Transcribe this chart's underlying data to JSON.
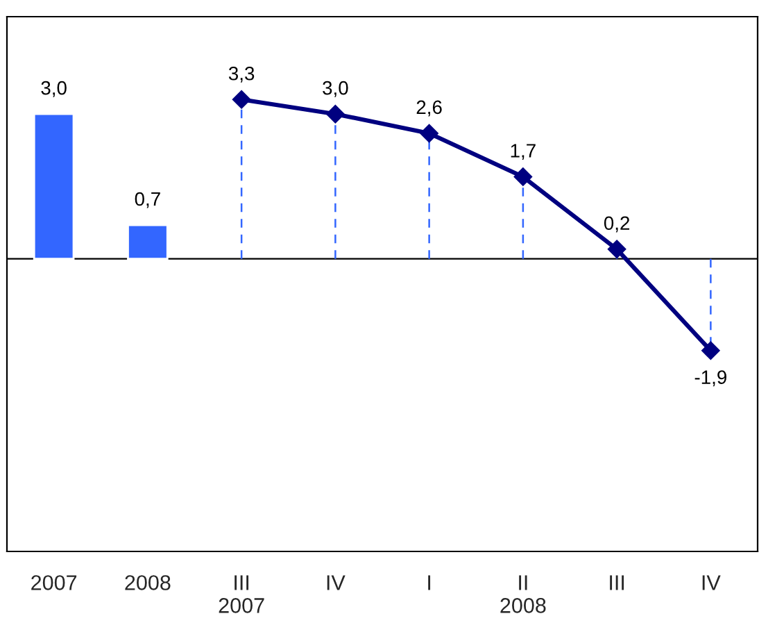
{
  "chart_data": {
    "type": "line",
    "categories": [
      "2007",
      "2008",
      "III\n2007",
      "IV",
      "I",
      "II\n2008",
      "III",
      "IV"
    ],
    "series": [
      {
        "type": "bar",
        "color": "#3366ff",
        "values": [
          3.0,
          0.7,
          null,
          null,
          null,
          null,
          null,
          null
        ],
        "value_labels": [
          "3,0",
          "0,7",
          null,
          null,
          null,
          null,
          null,
          null
        ]
      },
      {
        "color": "#000080",
        "marker": "diamond",
        "line_style": "solid",
        "values": [
          null,
          null,
          3.3,
          3.0,
          2.6,
          1.7,
          0.2,
          -1.9
        ],
        "value_labels": [
          null,
          null,
          "3,3",
          "3,0",
          "2,6",
          "1,7",
          "0,2",
          "-1,9"
        ]
      }
    ],
    "tick_labels": "x",
    "grid": false,
    "legend": false
  }
}
